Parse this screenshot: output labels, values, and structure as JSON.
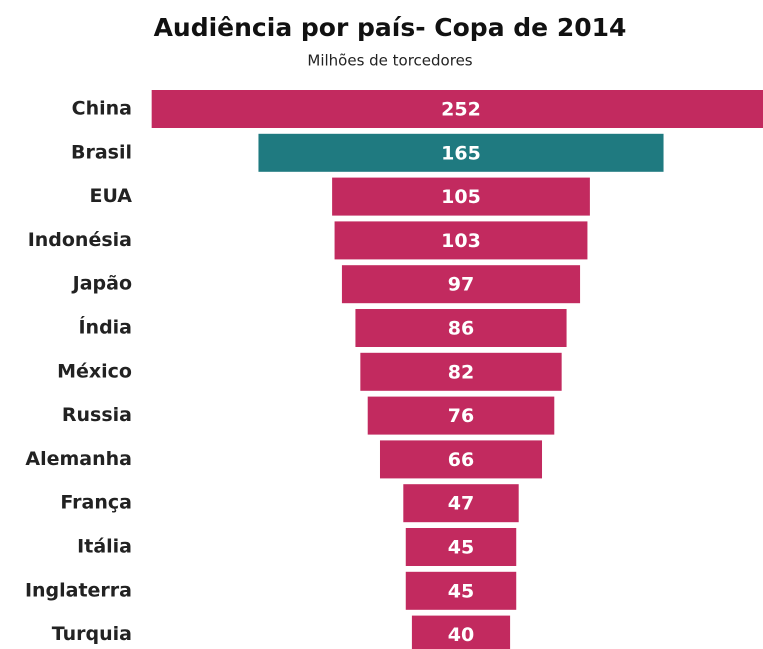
{
  "chart_data": {
    "type": "funnel",
    "title": "Audiência por país- Copa de 2014",
    "subtitle": "Milhões de torcedores",
    "categories": [
      "China",
      "Brasil",
      "EUA",
      "Indonésia",
      "Japão",
      "Índia",
      "México",
      "Russia",
      "Alemanha",
      "França",
      "Itália",
      "Inglaterra",
      "Turquia"
    ],
    "values": [
      252,
      165,
      105,
      103,
      97,
      86,
      82,
      76,
      66,
      47,
      45,
      45,
      40
    ],
    "colors": [
      "#c22a5f",
      "#1f7a80",
      "#c22a5f",
      "#c22a5f",
      "#c22a5f",
      "#c22a5f",
      "#c22a5f",
      "#c22a5f",
      "#c22a5f",
      "#c22a5f",
      "#c22a5f",
      "#c22a5f",
      "#c22a5f"
    ]
  }
}
